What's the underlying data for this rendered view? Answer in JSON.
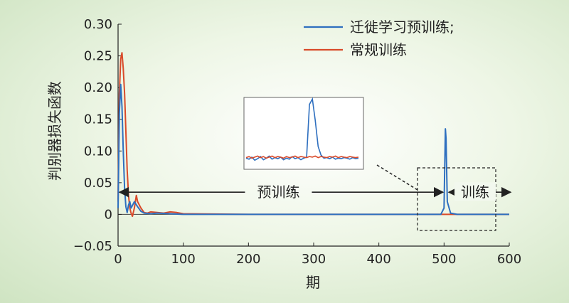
{
  "chart_data": {
    "type": "line",
    "xlabel": "期",
    "ylabel": "判别器损失函数",
    "xlim": [
      0,
      600
    ],
    "ylim": [
      -0.05,
      0.3
    ],
    "xticks": [
      0,
      100,
      200,
      300,
      400,
      500,
      600
    ],
    "xtick_labels": [
      "0",
      "100",
      "200",
      "300",
      "400",
      "500",
      "600"
    ],
    "yticks": [
      -0.05,
      0,
      0.05,
      0.1,
      0.15,
      0.2,
      0.25,
      0.3
    ],
    "ytick_labels": [
      "−0.05",
      "0",
      "0.05",
      "0.10",
      "0.15",
      "0.20",
      "0.25",
      "0.30"
    ],
    "grid": false,
    "legend_position": "top-right",
    "series": [
      {
        "name": "迁徙学习预训练;",
        "color": "#2e6fbf",
        "x": [
          0,
          2,
          4,
          6,
          8,
          10,
          12,
          14,
          16,
          18,
          20,
          25,
          30,
          35,
          40,
          50,
          60,
          80,
          100,
          200,
          300,
          400,
          495,
          500,
          502,
          503,
          505,
          510,
          520,
          600
        ],
        "y": [
          0.01,
          0.16,
          0.205,
          0.17,
          0.1,
          0.04,
          0.012,
          0.003,
          0.015,
          0.02,
          0.01,
          0.02,
          0.012,
          0.005,
          0.002,
          0.001,
          0.002,
          0.001,
          0.0,
          0.0,
          0.0,
          0.0,
          0.0,
          0.01,
          0.135,
          0.12,
          0.02,
          0.002,
          0.0,
          0.0
        ]
      },
      {
        "name": "常规训练",
        "color": "#d94a2a",
        "x": [
          0,
          2,
          4,
          6,
          8,
          10,
          12,
          14,
          16,
          18,
          20,
          22,
          25,
          28,
          30,
          35,
          40,
          45,
          50,
          60,
          70,
          80,
          90,
          100,
          200,
          300,
          400,
          500,
          600
        ],
        "y": [
          0.02,
          0.19,
          0.245,
          0.255,
          0.23,
          0.19,
          0.13,
          0.07,
          0.03,
          0.01,
          0.002,
          -0.003,
          0.01,
          0.03,
          0.02,
          0.01,
          0.003,
          0.002,
          0.004,
          0.003,
          0.002,
          0.004,
          0.003,
          0.001,
          0.0,
          0.0,
          0.0,
          0.0,
          0.0
        ]
      }
    ],
    "annotations": [
      {
        "text": "预训练",
        "x_start": 0,
        "x_end": 505,
        "y": 0.035
      },
      {
        "text": "训练",
        "x_start": 505,
        "x_end": 600,
        "y": 0.035
      }
    ],
    "inset": {
      "blue": [
        0.098,
        0.096,
        0.1,
        0.094,
        0.097,
        0.101,
        0.095,
        0.098,
        0.102,
        0.096,
        0.099,
        0.097,
        0.1,
        0.095,
        0.098,
        0.096,
        0.101,
        0.097,
        0.099,
        0.095,
        0.098,
        0.1,
        0.2,
        0.21,
        0.17,
        0.12,
        0.104,
        0.098,
        0.099,
        0.097,
        0.1,
        0.096,
        0.098,
        0.097,
        0.099,
        0.098,
        0.096,
        0.099,
        0.097,
        0.098
      ],
      "red": [
        0.099,
        0.101,
        0.098,
        0.1,
        0.102,
        0.099,
        0.101,
        0.098,
        0.1,
        0.102,
        0.099,
        0.101,
        0.1,
        0.098,
        0.101,
        0.099,
        0.1,
        0.102,
        0.099,
        0.101,
        0.1,
        0.099,
        0.101,
        0.1,
        0.102,
        0.099,
        0.101,
        0.1,
        0.099,
        0.101,
        0.1,
        0.102,
        0.099,
        0.101,
        0.1,
        0.099,
        0.101,
        0.1,
        0.099,
        0.1
      ]
    }
  }
}
